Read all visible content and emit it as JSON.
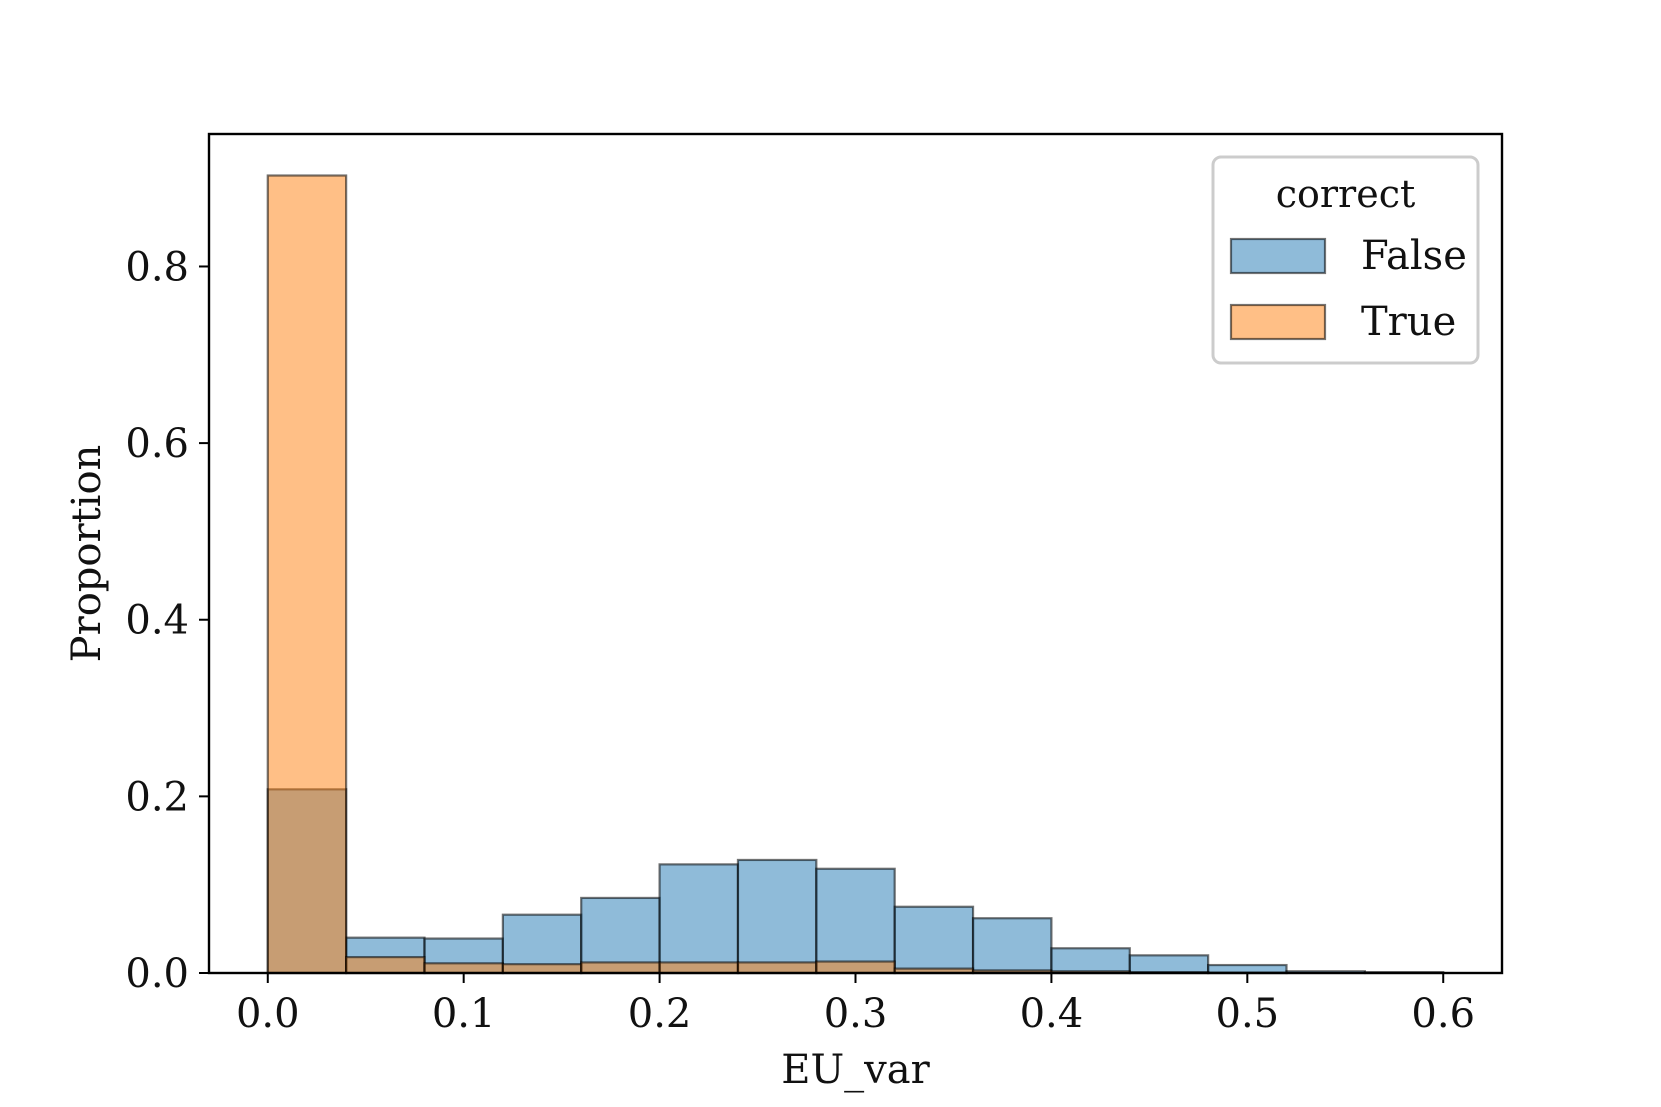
{
  "chart_data": {
    "type": "bar",
    "xlabel": "EU_var",
    "ylabel": "Proportion",
    "xlim": [
      -0.03,
      0.63
    ],
    "ylim": [
      0,
      0.95
    ],
    "bin_edges": [
      0.0,
      0.04,
      0.08,
      0.12,
      0.16,
      0.2,
      0.24,
      0.28,
      0.32,
      0.36,
      0.4,
      0.44,
      0.48,
      0.52,
      0.56,
      0.6
    ],
    "x_ticks": [
      {
        "value": 0.0,
        "label": "0.0"
      },
      {
        "value": 0.1,
        "label": "0.1"
      },
      {
        "value": 0.2,
        "label": "0.2"
      },
      {
        "value": 0.3,
        "label": "0.3"
      },
      {
        "value": 0.4,
        "label": "0.4"
      },
      {
        "value": 0.5,
        "label": "0.5"
      },
      {
        "value": 0.6,
        "label": "0.6"
      }
    ],
    "y_ticks": [
      {
        "value": 0.0,
        "label": "0.0"
      },
      {
        "value": 0.2,
        "label": "0.2"
      },
      {
        "value": 0.4,
        "label": "0.4"
      },
      {
        "value": 0.6,
        "label": "0.6"
      },
      {
        "value": 0.8,
        "label": "0.8"
      }
    ],
    "legend": {
      "title": "correct",
      "placement": "top-right"
    },
    "grid": false,
    "series": [
      {
        "name": "False",
        "color": "#1f77b4",
        "values": [
          0.208,
          0.04,
          0.039,
          0.066,
          0.085,
          0.123,
          0.128,
          0.118,
          0.075,
          0.062,
          0.028,
          0.02,
          0.009,
          0.002,
          0.001
        ]
      },
      {
        "name": "True",
        "color": "#ff7f0e",
        "values": [
          0.903,
          0.018,
          0.011,
          0.01,
          0.012,
          0.012,
          0.012,
          0.013,
          0.005,
          0.003,
          0.002,
          0.001,
          0.0005,
          0.0,
          0.0
        ]
      }
    ]
  }
}
